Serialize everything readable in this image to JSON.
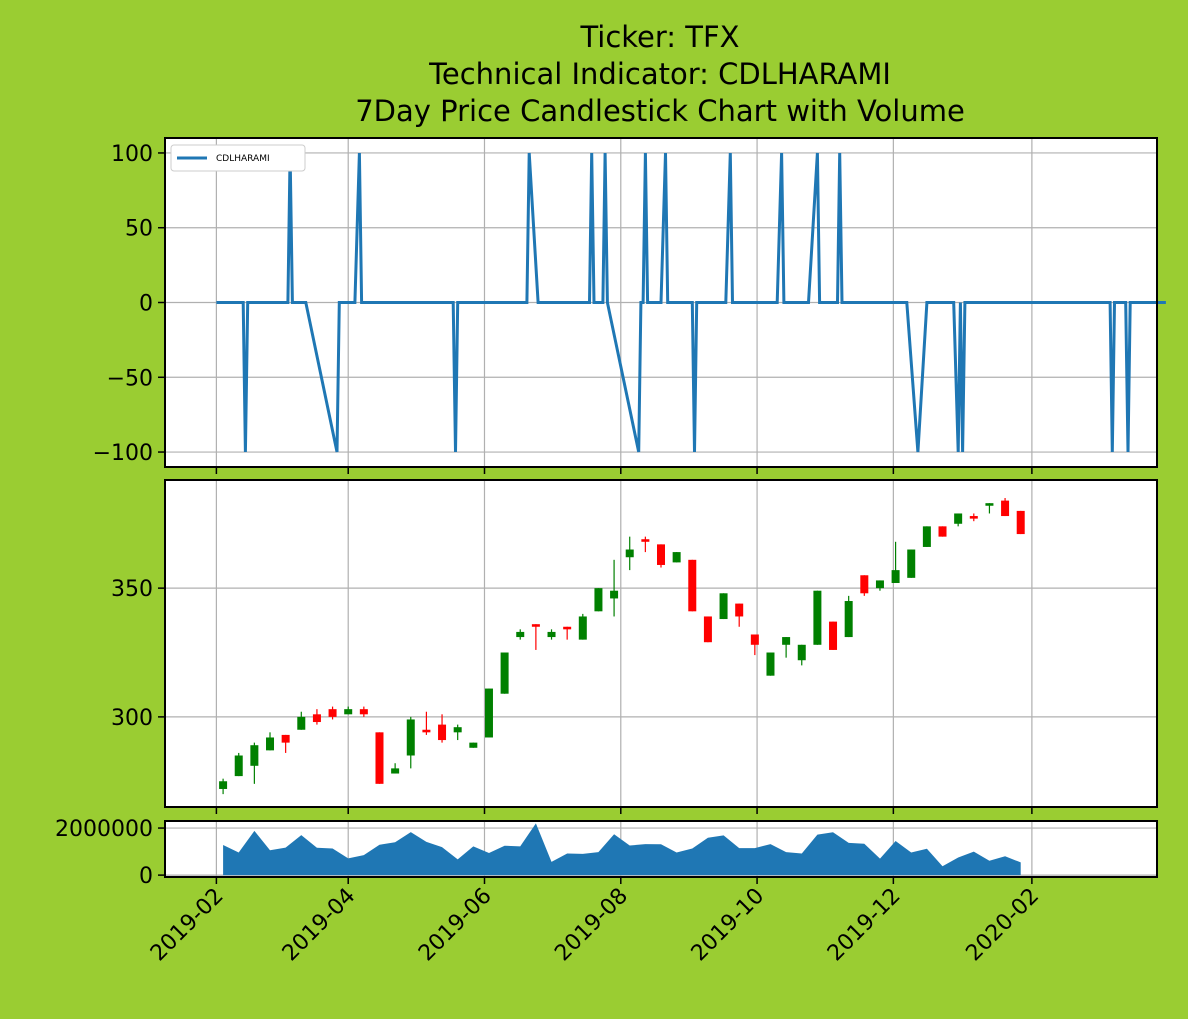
{
  "figure": {
    "background": "#9acd32",
    "title_lines": [
      "Ticker: TFX",
      "Technical Indicator: CDLHARAMI",
      "7Day Price Candlestick Chart with Volume"
    ]
  },
  "chart_data": [
    {
      "type": "line",
      "panel": "indicator",
      "series": [
        {
          "name": "CDLHARAMI",
          "color": "#1f77b4"
        }
      ],
      "points": [
        [
          "2019-02-01",
          0
        ],
        [
          "2019-02-13",
          0
        ],
        [
          "2019-02-14",
          -100
        ],
        [
          "2019-02-15",
          0
        ],
        [
          "2019-03-05",
          0
        ],
        [
          "2019-03-06",
          100
        ],
        [
          "2019-03-07",
          0
        ],
        [
          "2019-03-13",
          0
        ],
        [
          "2019-03-27",
          -100
        ],
        [
          "2019-03-28",
          0
        ],
        [
          "2019-04-04",
          0
        ],
        [
          "2019-04-06",
          100
        ],
        [
          "2019-04-07",
          0
        ],
        [
          "2019-05-18",
          0
        ],
        [
          "2019-05-19",
          -100
        ],
        [
          "2019-05-20",
          0
        ],
        [
          "2019-06-20",
          0
        ],
        [
          "2019-06-21",
          100
        ],
        [
          "2019-06-25",
          0
        ],
        [
          "2019-07-18",
          0
        ],
        [
          "2019-07-19",
          100
        ],
        [
          "2019-07-20",
          0
        ],
        [
          "2019-07-24",
          0
        ],
        [
          "2019-07-25",
          100
        ],
        [
          "2019-07-26",
          0
        ],
        [
          "2019-08-09",
          -100
        ],
        [
          "2019-08-10",
          0
        ],
        [
          "2019-08-11",
          0
        ],
        [
          "2019-08-12",
          100
        ],
        [
          "2019-08-13",
          0
        ],
        [
          "2019-08-19",
          0
        ],
        [
          "2019-08-21",
          100
        ],
        [
          "2019-08-22",
          0
        ],
        [
          "2019-09-02",
          0
        ],
        [
          "2019-09-03",
          -100
        ],
        [
          "2019-09-04",
          0
        ],
        [
          "2019-09-17",
          0
        ],
        [
          "2019-09-19",
          100
        ],
        [
          "2019-09-20",
          0
        ],
        [
          "2019-10-10",
          0
        ],
        [
          "2019-10-12",
          100
        ],
        [
          "2019-10-13",
          0
        ],
        [
          "2019-10-24",
          0
        ],
        [
          "2019-10-28",
          100
        ],
        [
          "2019-10-29",
          0
        ],
        [
          "2019-11-06",
          0
        ],
        [
          "2019-11-07",
          100
        ],
        [
          "2019-11-08",
          0
        ],
        [
          "2019-12-07",
          0
        ],
        [
          "2019-12-12",
          -100
        ],
        [
          "2019-12-16",
          0
        ],
        [
          "2019-12-28",
          0
        ],
        [
          "2019-12-30",
          -100
        ],
        [
          "2019-12-31",
          0
        ],
        [
          "2020-01-01",
          -100
        ],
        [
          "2020-01-02",
          0
        ],
        [
          "2020-03-07",
          0
        ],
        [
          "2020-03-08",
          -100
        ],
        [
          "2020-03-09",
          0
        ],
        [
          "2020-03-14",
          0
        ],
        [
          "2020-03-15",
          -100
        ],
        [
          "2020-03-16",
          0
        ],
        [
          "2020-04-01",
          0
        ]
      ],
      "ylim": [
        -110,
        110
      ],
      "yticks": [
        100,
        50,
        0,
        -50,
        -100
      ],
      "legend": "top-left",
      "grid": true
    },
    {
      "type": "candlestick",
      "panel": "price",
      "up_color": "#008000",
      "down_color": "#ff0000",
      "candles": [
        [
          "2019-02-04",
          272,
          275,
          276,
          270
        ],
        [
          "2019-02-11",
          277,
          285,
          286,
          277
        ],
        [
          "2019-02-18",
          281,
          289,
          290,
          274
        ],
        [
          "2019-02-25",
          287,
          292,
          294,
          287
        ],
        [
          "2019-03-04",
          293,
          290,
          293,
          286
        ],
        [
          "2019-03-11",
          295,
          300,
          302,
          295
        ],
        [
          "2019-03-18",
          301,
          298,
          303,
          297
        ],
        [
          "2019-03-25",
          303,
          300,
          304,
          299
        ],
        [
          "2019-04-01",
          301,
          303,
          304,
          301
        ],
        [
          "2019-04-08",
          303,
          301,
          304,
          300
        ],
        [
          "2019-04-15",
          294,
          274,
          294,
          274
        ],
        [
          "2019-04-22",
          278,
          280,
          282,
          278
        ],
        [
          "2019-04-29",
          285,
          299,
          300,
          280
        ],
        [
          "2019-05-06",
          295,
          294,
          302,
          293
        ],
        [
          "2019-05-13",
          297,
          291,
          301,
          290
        ],
        [
          "2019-05-20",
          294,
          296,
          297,
          291
        ],
        [
          "2019-05-27",
          288,
          290,
          290,
          288
        ],
        [
          "2019-06-03",
          292,
          311,
          311,
          292
        ],
        [
          "2019-06-10",
          309,
          325,
          325,
          309
        ],
        [
          "2019-06-17",
          331,
          333,
          334,
          330
        ],
        [
          "2019-06-24",
          336,
          335,
          336,
          326
        ],
        [
          "2019-07-01",
          331,
          333,
          334,
          330
        ],
        [
          "2019-07-08",
          335,
          334,
          335,
          330
        ],
        [
          "2019-07-15",
          330,
          339,
          340,
          330
        ],
        [
          "2019-07-22",
          341,
          350,
          350,
          341
        ],
        [
          "2019-07-29",
          346,
          349,
          361,
          339
        ],
        [
          "2019-08-05",
          362,
          365,
          370,
          357
        ],
        [
          "2019-08-12",
          369,
          368,
          370,
          364
        ],
        [
          "2019-08-19",
          367,
          359,
          367,
          358
        ],
        [
          "2019-08-26",
          360,
          364,
          364,
          360
        ],
        [
          "2019-09-02",
          361,
          341,
          361,
          341
        ],
        [
          "2019-09-09",
          339,
          329,
          339,
          329
        ],
        [
          "2019-09-16",
          338,
          348,
          348,
          338
        ],
        [
          "2019-09-23",
          344,
          339,
          344,
          335
        ],
        [
          "2019-09-30",
          332,
          328,
          332,
          324
        ],
        [
          "2019-10-07",
          316,
          325,
          325,
          316
        ],
        [
          "2019-10-14",
          328,
          331,
          331,
          323
        ],
        [
          "2019-10-21",
          322,
          328,
          328,
          320
        ],
        [
          "2019-10-28",
          328,
          349,
          349,
          328
        ],
        [
          "2019-11-04",
          337,
          326,
          337,
          326
        ],
        [
          "2019-11-11",
          331,
          345,
          347,
          331
        ],
        [
          "2019-11-18",
          355,
          348,
          355,
          347
        ],
        [
          "2019-11-25",
          350,
          353,
          353,
          349
        ],
        [
          "2019-12-02",
          352,
          357,
          368,
          352
        ],
        [
          "2019-12-09",
          354,
          365,
          365,
          354
        ],
        [
          "2019-12-16",
          366,
          374,
          374,
          366
        ],
        [
          "2019-12-23",
          374,
          370,
          374,
          370
        ],
        [
          "2019-12-30",
          375,
          379,
          379,
          374
        ],
        [
          "2020-01-06",
          378,
          377,
          379,
          376
        ],
        [
          "2020-01-13",
          382,
          383,
          383,
          379
        ],
        [
          "2020-01-20",
          384,
          378,
          385,
          378
        ],
        [
          "2020-01-27",
          380,
          371,
          380,
          371
        ]
      ],
      "ylim": [
        265,
        392
      ],
      "yticks": [
        350,
        300
      ],
      "grid": true
    },
    {
      "type": "area",
      "panel": "volume",
      "color": "#1f77b4",
      "points": [
        [
          "2019-02-04",
          1280000
        ],
        [
          "2019-02-11",
          960000
        ],
        [
          "2019-02-18",
          1880000
        ],
        [
          "2019-02-25",
          1060000
        ],
        [
          "2019-03-04",
          1170000
        ],
        [
          "2019-03-11",
          1700000
        ],
        [
          "2019-03-18",
          1160000
        ],
        [
          "2019-03-25",
          1130000
        ],
        [
          "2019-04-01",
          710000
        ],
        [
          "2019-04-08",
          850000
        ],
        [
          "2019-04-15",
          1290000
        ],
        [
          "2019-04-22",
          1400000
        ],
        [
          "2019-04-29",
          1830000
        ],
        [
          "2019-05-06",
          1410000
        ],
        [
          "2019-05-13",
          1190000
        ],
        [
          "2019-05-20",
          670000
        ],
        [
          "2019-05-27",
          1220000
        ],
        [
          "2019-06-03",
          940000
        ],
        [
          "2019-06-10",
          1250000
        ],
        [
          "2019-06-17",
          1220000
        ],
        [
          "2019-06-24",
          2200000
        ],
        [
          "2019-07-01",
          560000
        ],
        [
          "2019-07-08",
          920000
        ],
        [
          "2019-07-15",
          900000
        ],
        [
          "2019-07-22",
          980000
        ],
        [
          "2019-07-29",
          1740000
        ],
        [
          "2019-08-05",
          1260000
        ],
        [
          "2019-08-12",
          1320000
        ],
        [
          "2019-08-19",
          1310000
        ],
        [
          "2019-08-26",
          960000
        ],
        [
          "2019-09-02",
          1130000
        ],
        [
          "2019-09-09",
          1590000
        ],
        [
          "2019-09-16",
          1690000
        ],
        [
          "2019-09-23",
          1150000
        ],
        [
          "2019-09-30",
          1150000
        ],
        [
          "2019-10-07",
          1320000
        ],
        [
          "2019-10-14",
          980000
        ],
        [
          "2019-10-21",
          920000
        ],
        [
          "2019-10-28",
          1720000
        ],
        [
          "2019-11-04",
          1820000
        ],
        [
          "2019-11-11",
          1370000
        ],
        [
          "2019-11-18",
          1330000
        ],
        [
          "2019-11-25",
          700000
        ],
        [
          "2019-12-02",
          1450000
        ],
        [
          "2019-12-09",
          960000
        ],
        [
          "2019-12-16",
          1120000
        ],
        [
          "2019-12-23",
          380000
        ],
        [
          "2019-12-30",
          750000
        ],
        [
          "2020-01-06",
          1000000
        ],
        [
          "2020-01-13",
          610000
        ],
        [
          "2020-01-20",
          800000
        ],
        [
          "2020-01-27",
          540000
        ]
      ],
      "ylim": [
        -80000,
        2300000
      ],
      "yticks": [
        "2000000",
        "0"
      ],
      "grid": true
    }
  ],
  "x_axis": {
    "tick_labels": [
      "2019-02",
      "2019-04",
      "2019-06",
      "2019-08",
      "2019-10",
      "2019-12",
      "2020-02"
    ],
    "tick_dates": [
      "2019-02-01",
      "2019-04-01",
      "2019-06-01",
      "2019-08-01",
      "2019-10-01",
      "2019-12-01",
      "2020-02-01"
    ],
    "range": [
      "2019-01-09",
      "2020-03-28"
    ],
    "rotation": 45
  }
}
